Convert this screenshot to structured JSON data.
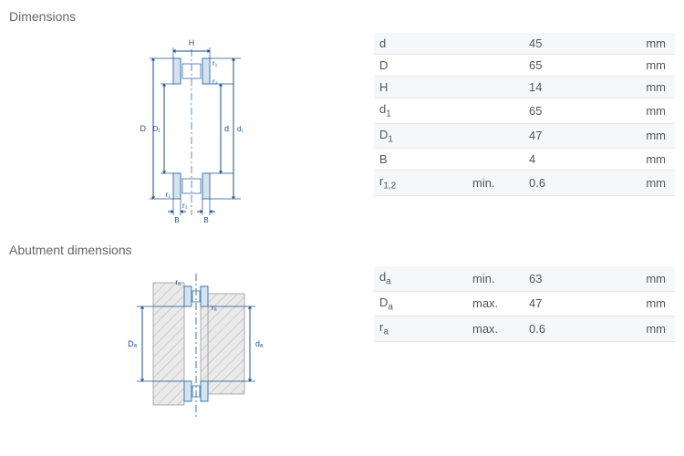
{
  "sections": {
    "dimensions": {
      "title": "Dimensions",
      "rows": [
        {
          "sym": "d",
          "sub": "",
          "qual": "",
          "val": "45",
          "unit": "mm"
        },
        {
          "sym": "D",
          "sub": "",
          "qual": "",
          "val": "65",
          "unit": "mm"
        },
        {
          "sym": "H",
          "sub": "",
          "qual": "",
          "val": "14",
          "unit": "mm"
        },
        {
          "sym": "d",
          "sub": "1",
          "qual": "",
          "val": "65",
          "unit": "mm"
        },
        {
          "sym": "D",
          "sub": "1",
          "qual": "",
          "val": "47",
          "unit": "mm"
        },
        {
          "sym": "B",
          "sub": "",
          "qual": "",
          "val": "4",
          "unit": "mm"
        },
        {
          "sym": "r",
          "sub": "1,2",
          "qual": "min.",
          "val": "0.6",
          "unit": "mm"
        }
      ]
    },
    "abutment": {
      "title": "Abutment dimensions",
      "rows": [
        {
          "sym": "d",
          "sub": "a",
          "qual": "min.",
          "val": "63",
          "unit": "mm"
        },
        {
          "sym": "D",
          "sub": "a",
          "qual": "max.",
          "val": "47",
          "unit": "mm"
        },
        {
          "sym": "r",
          "sub": "a",
          "qual": "max.",
          "val": "0.6",
          "unit": "mm"
        }
      ]
    }
  },
  "diagram1": {
    "labels": {
      "H": "H",
      "r1": "r₁",
      "r2": "r₂",
      "D": "D",
      "D1": "D₁",
      "d": "d",
      "d1": "d₁",
      "B": "B"
    },
    "colors": {
      "bearing_fill": "#d4e3f0",
      "bearing_stroke": "#5b8bb8",
      "dim_line": "#1a4f8f",
      "centerline": "#3a6fa5",
      "label": "#1a4f8f"
    },
    "fontsize": 9
  },
  "diagram2": {
    "labels": {
      "ra": "rₐ",
      "Da": "Dₐ",
      "da": "dₐ"
    },
    "colors": {
      "hatch_bg": "#eaeaea",
      "hatch_line": "#cccccc",
      "bearing_fill": "#d4e3f0",
      "bearing_stroke": "#5b8bb8",
      "dim_line": "#1a4f8f",
      "label": "#1a4f8f"
    },
    "fontsize": 9
  }
}
